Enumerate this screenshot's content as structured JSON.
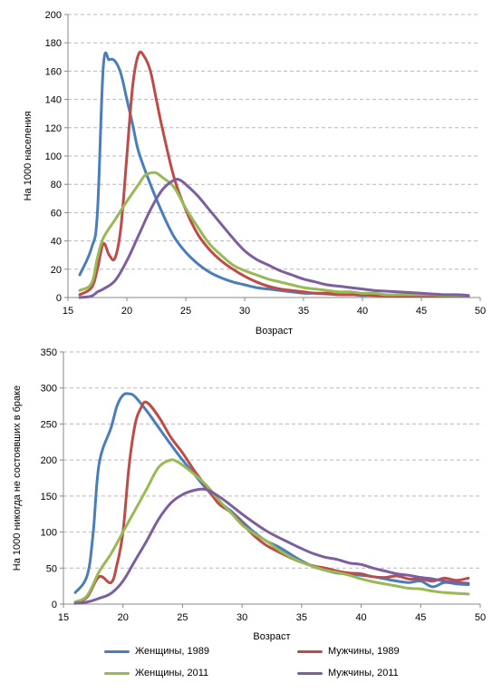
{
  "chart_data": [
    {
      "type": "line",
      "xlabel": "Возраст",
      "ylabel": "На 1000 населения",
      "xlim": [
        15,
        50
      ],
      "ylim": [
        0,
        200
      ],
      "xticks": [
        15,
        20,
        25,
        30,
        35,
        40,
        45,
        50
      ],
      "yticks": [
        0,
        20,
        40,
        60,
        80,
        100,
        120,
        140,
        160,
        180,
        200
      ],
      "grid": "horizontal-dashed",
      "series": [
        {
          "name": "Женщины, 1989",
          "color": "#4a7ebb",
          "x": [
            16,
            17,
            17.5,
            18,
            18.5,
            19,
            19.5,
            20,
            20.5,
            21,
            22,
            23,
            24,
            25,
            26,
            27,
            28,
            29,
            30,
            31,
            32,
            33,
            34,
            35,
            36,
            37,
            38,
            39,
            40,
            41,
            42,
            43,
            44,
            45,
            46,
            47,
            48,
            49
          ],
          "y": [
            16,
            35,
            60,
            163,
            168,
            167,
            158,
            140,
            122,
            103,
            80,
            60,
            43,
            32,
            24,
            18,
            14,
            11,
            9,
            7,
            6,
            5,
            4,
            3,
            3,
            2.5,
            2,
            2,
            1.5,
            1.5,
            1,
            1,
            1,
            1,
            1,
            1,
            1,
            1
          ]
        },
        {
          "name": "Мужчины, 1989",
          "color": "#be4b48",
          "x": [
            16,
            17,
            17.5,
            18,
            18.5,
            19,
            19.5,
            20,
            20.5,
            21,
            21.5,
            22,
            22.5,
            23,
            24,
            25,
            26,
            27,
            28,
            29,
            30,
            31,
            32,
            33,
            34,
            35,
            36,
            37,
            38,
            39,
            40,
            41,
            42,
            43,
            44,
            45,
            46,
            47,
            48,
            49
          ],
          "y": [
            2,
            7,
            20,
            38,
            30,
            28,
            50,
            100,
            150,
            172,
            170,
            160,
            140,
            120,
            85,
            62,
            45,
            34,
            26,
            20,
            15,
            11,
            8,
            6,
            5,
            4,
            3,
            3,
            2,
            2,
            2,
            1.5,
            1.5,
            1,
            1,
            1,
            1,
            1,
            1,
            1
          ]
        },
        {
          "name": "Женщины, 2011",
          "color": "#98b954",
          "x": [
            16,
            17,
            17.5,
            18,
            19,
            20,
            21,
            21.5,
            22,
            22.5,
            23,
            24,
            25,
            26,
            27,
            28,
            29,
            30,
            31,
            32,
            33,
            34,
            35,
            36,
            37,
            38,
            39,
            40,
            41,
            42,
            43,
            44,
            45,
            46,
            47,
            48,
            49
          ],
          "y": [
            5,
            10,
            28,
            42,
            55,
            68,
            80,
            86,
            88,
            88,
            85,
            78,
            63,
            50,
            38,
            30,
            23,
            19,
            16,
            13,
            11,
            9,
            7,
            6,
            5,
            4,
            4,
            3,
            3,
            2,
            2,
            2,
            2,
            2,
            1.5,
            1.5,
            1.5
          ]
        },
        {
          "name": "Мужчины, 2011",
          "color": "#7d5fa0",
          "x": [
            16,
            17,
            17.5,
            18,
            19,
            20,
            21,
            22,
            23,
            24,
            24.5,
            25,
            26,
            27,
            28,
            29,
            30,
            31,
            32,
            33,
            34,
            35,
            36,
            37,
            38,
            39,
            40,
            41,
            42,
            43,
            44,
            45,
            46,
            47,
            48,
            49
          ],
          "y": [
            0,
            1,
            4,
            6,
            12,
            26,
            44,
            62,
            76,
            83,
            83,
            80,
            72,
            62,
            52,
            42,
            33,
            27,
            23,
            19,
            16,
            13,
            11,
            9,
            8,
            7,
            6,
            5,
            4.5,
            4,
            3.5,
            3,
            2.5,
            2,
            2,
            1.5
          ]
        }
      ]
    },
    {
      "type": "line",
      "xlabel": "Возраст",
      "ylabel": "На 1000 никогда не состоявших в браке",
      "xlim": [
        15,
        50
      ],
      "ylim": [
        0,
        350
      ],
      "xticks": [
        15,
        20,
        25,
        30,
        35,
        40,
        45,
        50
      ],
      "yticks": [
        0,
        50,
        100,
        150,
        200,
        250,
        300,
        350
      ],
      "grid": "horizontal-dashed",
      "series": [
        {
          "name": "Женщины, 1989",
          "color": "#4a7ebb",
          "x": [
            16,
            17,
            17.5,
            18,
            19,
            19.5,
            20,
            20.5,
            21,
            22,
            23,
            24,
            25,
            26,
            27,
            28,
            29,
            30,
            31,
            32,
            33,
            34,
            35,
            36,
            37,
            38,
            39,
            40,
            41,
            42,
            43,
            44,
            45,
            46,
            47,
            48,
            49
          ],
          "y": [
            16,
            40,
            100,
            195,
            245,
            275,
            290,
            292,
            288,
            268,
            245,
            222,
            200,
            180,
            160,
            143,
            130,
            115,
            100,
            88,
            80,
            70,
            60,
            52,
            47,
            43,
            42,
            40,
            38,
            35,
            32,
            30,
            32,
            24,
            30,
            28,
            27
          ]
        },
        {
          "name": "Мужчины, 1989",
          "color": "#be4b48",
          "x": [
            16,
            17,
            18,
            19,
            19.5,
            20,
            20.5,
            21,
            21.5,
            22,
            23,
            24,
            25,
            26,
            27,
            28,
            29,
            30,
            31,
            32,
            33,
            34,
            35,
            36,
            37,
            38,
            39,
            40,
            41,
            42,
            43,
            44,
            45,
            46,
            47,
            48,
            49
          ],
          "y": [
            2,
            10,
            38,
            30,
            55,
            100,
            190,
            248,
            272,
            280,
            260,
            232,
            210,
            185,
            163,
            140,
            128,
            112,
            95,
            82,
            73,
            65,
            58,
            53,
            50,
            46,
            43,
            42,
            38,
            37,
            39,
            35,
            35,
            32,
            36,
            33,
            36
          ]
        },
        {
          "name": "Женщины, 2011",
          "color": "#98b954",
          "x": [
            16,
            17,
            18,
            19,
            20,
            21,
            22,
            23,
            24,
            24.5,
            25,
            26,
            27,
            28,
            29,
            30,
            31,
            32,
            33,
            34,
            35,
            36,
            37,
            38,
            39,
            40,
            41,
            42,
            43,
            44,
            45,
            46,
            47,
            48,
            49
          ],
          "y": [
            3,
            12,
            45,
            70,
            100,
            130,
            160,
            190,
            200,
            198,
            193,
            180,
            165,
            145,
            128,
            110,
            98,
            88,
            76,
            66,
            58,
            52,
            47,
            44,
            40,
            35,
            31,
            28,
            25,
            22,
            21,
            18,
            16,
            15,
            14
          ]
        },
        {
          "name": "Мужчины, 2011",
          "color": "#7d5fa0",
          "x": [
            16,
            17,
            18,
            19,
            20,
            21,
            22,
            23,
            24,
            25,
            26,
            27,
            28,
            29,
            30,
            31,
            32,
            33,
            34,
            35,
            36,
            37,
            38,
            39,
            40,
            41,
            42,
            43,
            44,
            45,
            46,
            47,
            48,
            49
          ],
          "y": [
            1,
            3,
            8,
            15,
            32,
            60,
            88,
            118,
            140,
            152,
            158,
            159,
            150,
            138,
            125,
            113,
            102,
            93,
            85,
            77,
            70,
            65,
            62,
            57,
            55,
            50,
            46,
            42,
            40,
            37,
            35,
            32,
            30,
            29
          ]
        }
      ]
    }
  ],
  "legend": [
    {
      "label": "Женщины, 1989",
      "color": "#4a7ebb"
    },
    {
      "label": "Мужчины, 1989",
      "color": "#be4b48"
    },
    {
      "label": "Женщины, 2011",
      "color": "#98b954"
    },
    {
      "label": "Мужчины, 2011",
      "color": "#7d5fa0"
    }
  ]
}
